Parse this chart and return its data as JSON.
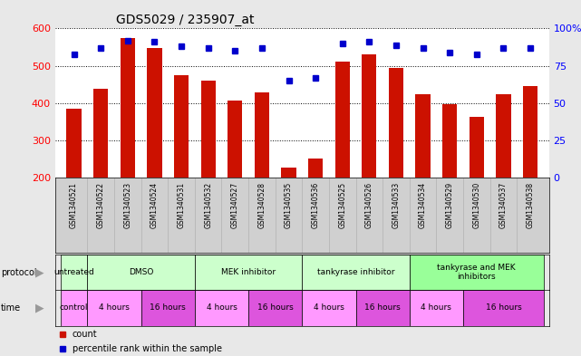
{
  "title": "GDS5029 / 235907_at",
  "samples": [
    "GSM1340521",
    "GSM1340522",
    "GSM1340523",
    "GSM1340524",
    "GSM1340531",
    "GSM1340532",
    "GSM1340527",
    "GSM1340528",
    "GSM1340535",
    "GSM1340536",
    "GSM1340525",
    "GSM1340526",
    "GSM1340533",
    "GSM1340534",
    "GSM1340529",
    "GSM1340530",
    "GSM1340537",
    "GSM1340538"
  ],
  "counts": [
    385,
    438,
    575,
    548,
    475,
    460,
    408,
    430,
    228,
    253,
    512,
    530,
    495,
    425,
    397,
    363,
    425,
    447
  ],
  "percentiles": [
    83,
    87,
    92,
    91,
    88,
    87,
    85,
    87,
    65,
    67,
    90,
    91,
    89,
    87,
    84,
    83,
    87,
    87
  ],
  "bar_color": "#cc1100",
  "dot_color": "#0000cc",
  "ylim_left": [
    200,
    600
  ],
  "ylim_right": [
    0,
    100
  ],
  "yticks_left": [
    200,
    300,
    400,
    500,
    600
  ],
  "yticks_right": [
    0,
    25,
    50,
    75,
    100
  ],
  "ytick_right_labels": [
    "0",
    "25",
    "50",
    "75",
    "100%"
  ],
  "protocol_groups": [
    {
      "label": "untreated",
      "start": 0,
      "end": 1,
      "color": "#ccffcc"
    },
    {
      "label": "DMSO",
      "start": 1,
      "end": 5,
      "color": "#ccffcc"
    },
    {
      "label": "MEK inhibitor",
      "start": 5,
      "end": 9,
      "color": "#ccffcc"
    },
    {
      "label": "tankyrase inhibitor",
      "start": 9,
      "end": 13,
      "color": "#ccffcc"
    },
    {
      "label": "tankyrase and MEK\ninhibitors",
      "start": 13,
      "end": 18,
      "color": "#99ff99"
    }
  ],
  "time_groups": [
    {
      "label": "control",
      "start": 0,
      "end": 1,
      "color": "#ff99ff"
    },
    {
      "label": "4 hours",
      "start": 1,
      "end": 3,
      "color": "#ff99ff"
    },
    {
      "label": "16 hours",
      "start": 3,
      "end": 5,
      "color": "#dd55dd"
    },
    {
      "label": "4 hours",
      "start": 5,
      "end": 7,
      "color": "#ff99ff"
    },
    {
      "label": "16 hours",
      "start": 7,
      "end": 9,
      "color": "#dd55dd"
    },
    {
      "label": "4 hours",
      "start": 9,
      "end": 11,
      "color": "#ff99ff"
    },
    {
      "label": "16 hours",
      "start": 11,
      "end": 13,
      "color": "#dd55dd"
    },
    {
      "label": "4 hours",
      "start": 13,
      "end": 15,
      "color": "#ff99ff"
    },
    {
      "label": "16 hours",
      "start": 15,
      "end": 18,
      "color": "#dd55dd"
    }
  ],
  "bg_color": "#e8e8e8",
  "plot_bg": "#ffffff",
  "xlabel_bg": "#d0d0d0"
}
